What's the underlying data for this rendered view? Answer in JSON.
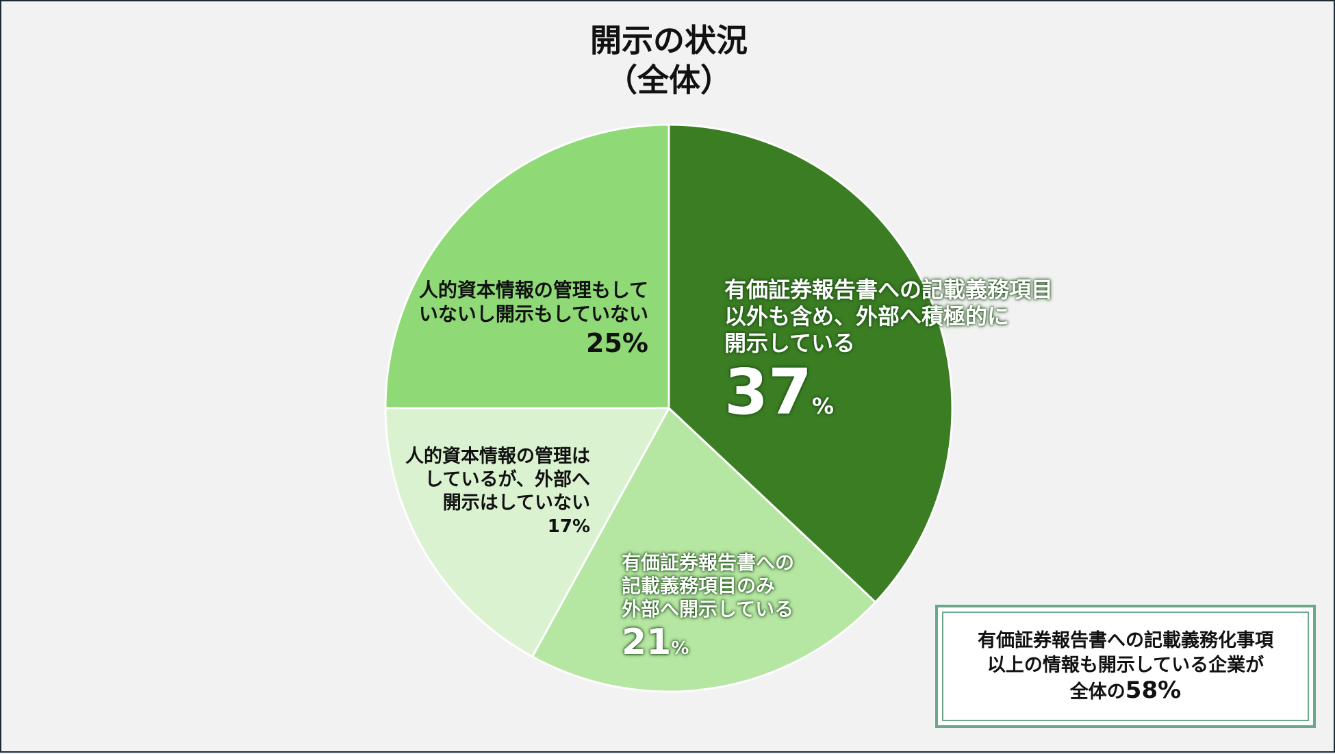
{
  "chart_data": {
    "type": "pie",
    "title_lines": [
      "開示の状況",
      "（全体）"
    ],
    "start": "top",
    "direction": "clockwise",
    "slices": [
      {
        "label_lines": [
          "有価証券報告書への記載義務項目",
          "以外も含め、外部へ積極的に",
          "開示している"
        ],
        "value": 37,
        "value_num": "37",
        "value_unit": "%",
        "color": "#3b7d23"
      },
      {
        "label_lines": [
          "有価証券報告書への",
          "記載義務項目のみ",
          "外部へ開示している"
        ],
        "value": 21,
        "value_num": "21",
        "value_unit": "%",
        "color": "#b5e6a2"
      },
      {
        "label_lines": [
          "人的資本情報の管理は",
          "しているが、外部へ",
          "開示はしていない"
        ],
        "value": 17,
        "value_text": "17%",
        "color": "#daf2d0"
      },
      {
        "label_lines": [
          "人的資本情報の管理もして",
          "いないし開示もしていない"
        ],
        "value": 25,
        "value_text": "25%",
        "color": "#8fd977"
      }
    ],
    "slice_border_color": "#ffffff"
  },
  "note": {
    "lines": [
      "有価証券報告書への記載義務化事項",
      "以上の情報も開示している企業が"
    ],
    "last_prefix": "全体の",
    "last_value": "58%",
    "border_color": "#6aa88a"
  }
}
